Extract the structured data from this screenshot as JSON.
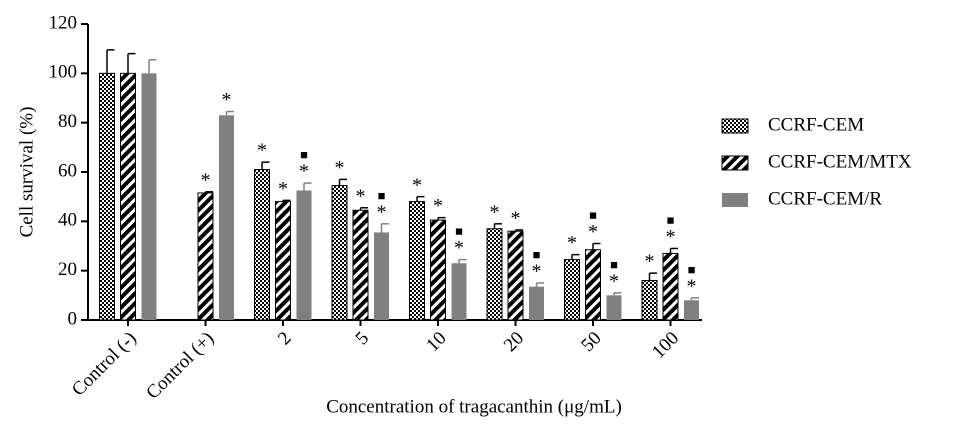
{
  "chart_data": {
    "type": "bar",
    "y_label": "Cell survival (%)",
    "x_label": "Concentration of tragacanthin (μg/mL)",
    "categories": [
      "Control (-)",
      "Control (+)",
      "2",
      "5",
      "10",
      "20",
      "50",
      "100"
    ],
    "ylim": [
      0,
      120
    ],
    "yticks": [
      0,
      20,
      40,
      60,
      80,
      100,
      120
    ],
    "legend": "right",
    "series": [
      {
        "name": "CCRF-CEM",
        "color": "#000000",
        "pattern": "checker",
        "values": [
          100,
          null,
          61,
          54.5,
          48,
          37,
          24.5,
          16
        ],
        "errors": [
          9.5,
          null,
          3,
          2.5,
          2,
          2,
          2,
          3
        ],
        "annotations": [
          [],
          [],
          [
            "*"
          ],
          [
            "*"
          ],
          [
            "*"
          ],
          [
            "*"
          ],
          [
            "*"
          ],
          [
            "*"
          ]
        ]
      },
      {
        "name": "CCRF-CEM/MTX",
        "color": "#000000",
        "pattern": "stripes",
        "values": [
          100,
          51.5,
          48,
          44.5,
          40.5,
          36,
          28.5,
          27
        ],
        "errors": [
          8,
          0.5,
          0.5,
          1,
          1,
          0.5,
          2.5,
          2
        ],
        "annotations": [
          [],
          [
            "*"
          ],
          [
            "*"
          ],
          [
            "*"
          ],
          [
            "*"
          ],
          [
            "*"
          ],
          [
            "*",
            "■"
          ],
          [
            "*",
            "■"
          ]
        ]
      },
      {
        "name": "CCRF-CEM/R",
        "color": "#808080",
        "pattern": "solid",
        "values": [
          100,
          83,
          52.5,
          35.5,
          23,
          13.5,
          10,
          8
        ],
        "errors": [
          5.5,
          1.5,
          3,
          3.5,
          1.5,
          1.5,
          1,
          1
        ],
        "annotations": [
          [],
          [
            "*"
          ],
          [
            "*",
            "■"
          ],
          [
            "*",
            "■"
          ],
          [
            "*",
            "■"
          ],
          [
            "*",
            "■"
          ],
          [
            "*",
            "■"
          ],
          [
            "*",
            "■"
          ]
        ]
      }
    ]
  }
}
